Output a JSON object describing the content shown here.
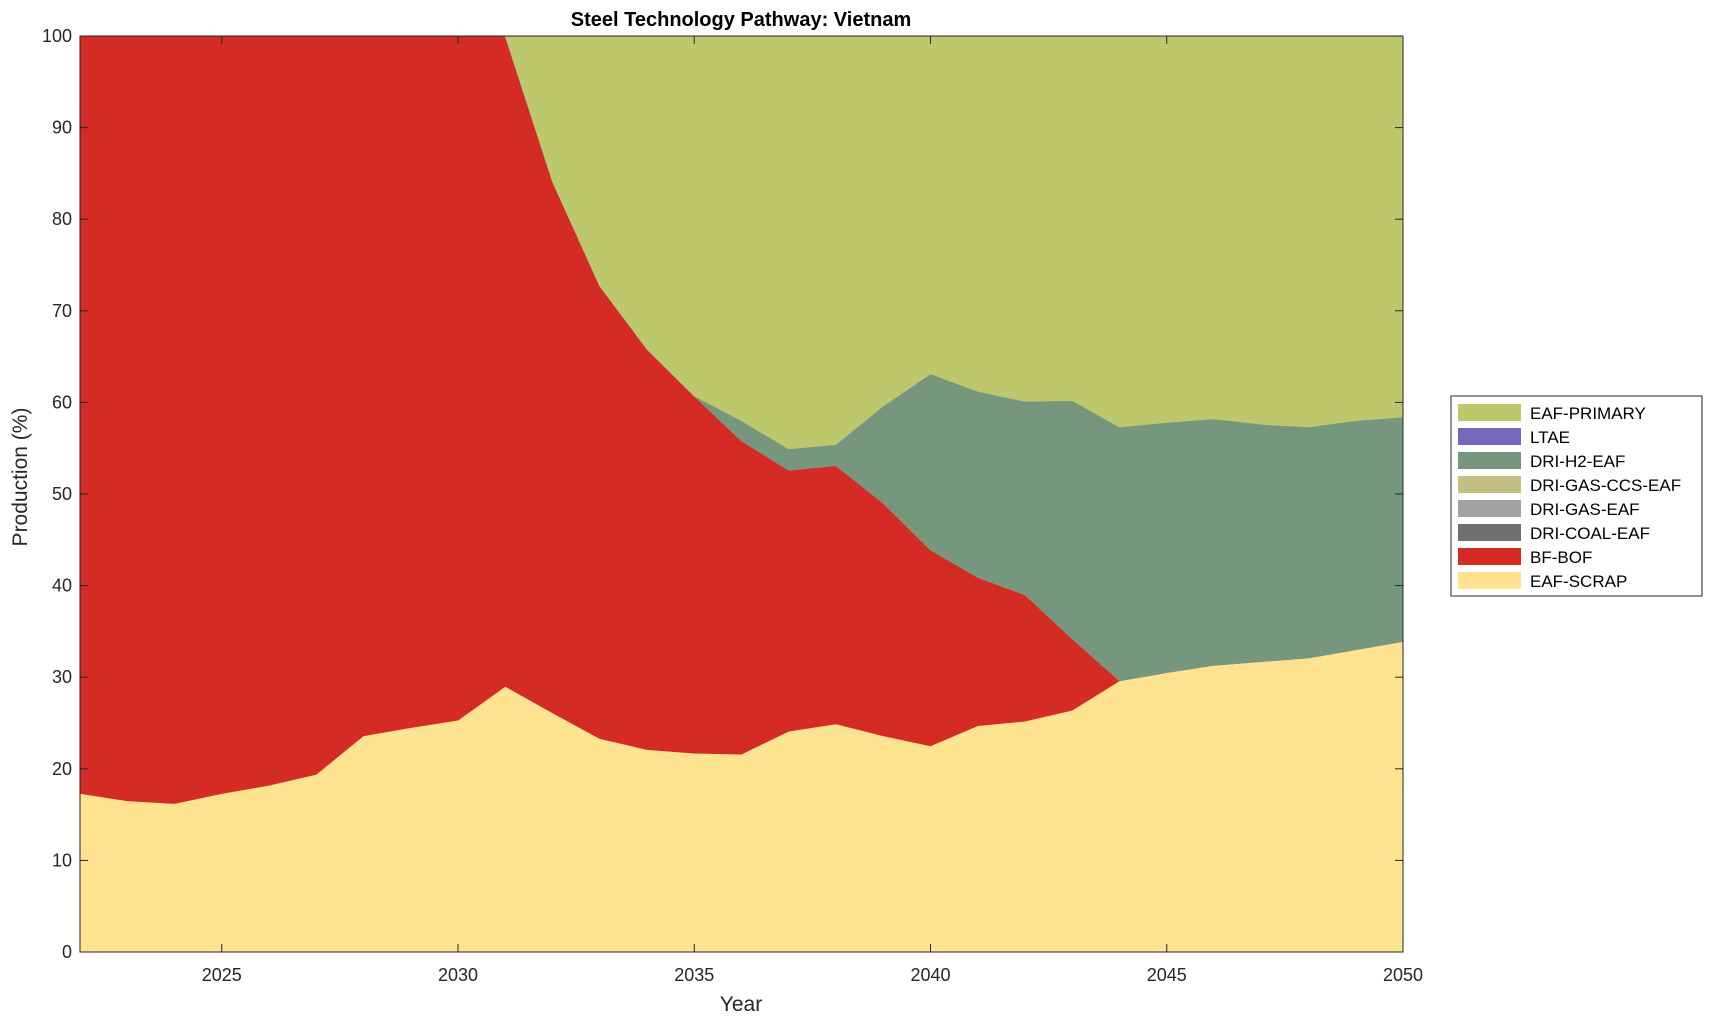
{
  "chart_data": {
    "type": "area",
    "title": "Steel Technology Pathway: Vietnam",
    "xlabel": "Year",
    "ylabel": "Production (%)",
    "xlim": [
      2022,
      2050
    ],
    "ylim": [
      0,
      100
    ],
    "xticks": [
      2025,
      2030,
      2035,
      2040,
      2045,
      2050
    ],
    "yticks": [
      0,
      10,
      20,
      30,
      40,
      50,
      60,
      70,
      80,
      90,
      100
    ],
    "grid": false,
    "legend_position": "right",
    "x": [
      2022,
      2023,
      2024,
      2025,
      2026,
      2027,
      2028,
      2029,
      2030,
      2031,
      2032,
      2033,
      2034,
      2035,
      2036,
      2037,
      2038,
      2039,
      2040,
      2041,
      2042,
      2043,
      2044,
      2045,
      2046,
      2047,
      2048,
      2049,
      2050
    ],
    "series": [
      {
        "name": "EAF-SCRAP",
        "color": "#fee391",
        "values": [
          17.3,
          16.5,
          16.2,
          17.3,
          18.2,
          19.4,
          23.6,
          24.5,
          25.3,
          29.0,
          26.1,
          23.3,
          22.1,
          21.7,
          21.6,
          24.1,
          24.9,
          23.6,
          22.5,
          24.7,
          25.2,
          26.4,
          29.6,
          30.5,
          31.3,
          31.7,
          32.1,
          33.0,
          33.9
        ]
      },
      {
        "name": "BF-BOF",
        "color": "#d42b25",
        "values": [
          82.7,
          83.5,
          83.8,
          82.7,
          81.8,
          80.6,
          76.4,
          75.5,
          74.7,
          71.0,
          58.0,
          49.4,
          43.7,
          39.0,
          34.2,
          28.5,
          28.2,
          25.4,
          21.4,
          16.2,
          13.8,
          7.8,
          0,
          0,
          0,
          0,
          0,
          0,
          0
        ]
      },
      {
        "name": "DRI-COAL-EAF",
        "color": "#707070",
        "values": [
          0,
          0,
          0,
          0,
          0,
          0,
          0,
          0,
          0,
          0,
          0,
          0,
          0,
          0,
          0,
          0,
          0,
          0,
          0,
          0,
          0,
          0,
          0,
          0,
          0,
          0,
          0,
          0,
          0
        ]
      },
      {
        "name": "DRI-GAS-EAF",
        "color": "#a2a2a2",
        "values": [
          0,
          0,
          0,
          0,
          0,
          0,
          0,
          0,
          0,
          0,
          0,
          0,
          0,
          0,
          0,
          0,
          0,
          0,
          0,
          0,
          0,
          0,
          0,
          0,
          0,
          0,
          0,
          0,
          0
        ]
      },
      {
        "name": "DRI-GAS-CCS-EAF",
        "color": "#c4bf83",
        "values": [
          0,
          0,
          0,
          0,
          0,
          0,
          0,
          0,
          0,
          0,
          0,
          0,
          0,
          0,
          0,
          0,
          0,
          0,
          0,
          0,
          0,
          0,
          0,
          0,
          0,
          0,
          0,
          0,
          0
        ]
      },
      {
        "name": "DRI-H2-EAF",
        "color": "#76977e",
        "values": [
          0,
          0,
          0,
          0,
          0,
          0,
          0,
          0,
          0,
          0,
          0,
          0,
          0,
          0,
          2.2,
          2.3,
          2.3,
          10.6,
          19.2,
          20.3,
          21.1,
          26.0,
          27.7,
          27.3,
          26.9,
          25.9,
          25.2,
          25.0,
          24.5
        ]
      },
      {
        "name": "LTAE",
        "color": "#7668bb",
        "values": [
          0,
          0,
          0,
          0,
          0,
          0,
          0,
          0,
          0,
          0,
          0,
          0,
          0,
          0,
          0,
          0,
          0,
          0,
          0,
          0,
          0,
          0,
          0,
          0,
          0,
          0,
          0,
          0,
          0
        ]
      },
      {
        "name": "EAF-PRIMARY",
        "color": "#bdc86c",
        "values": [
          0,
          0,
          0,
          0,
          0,
          0,
          0,
          0,
          0,
          0,
          15.9,
          27.3,
          34.2,
          39.3,
          42.0,
          45.1,
          44.6,
          40.4,
          36.9,
          38.8,
          39.9,
          39.8,
          42.7,
          42.2,
          41.8,
          42.4,
          42.7,
          42.0,
          41.6
        ]
      }
    ],
    "legend_order": [
      "EAF-PRIMARY",
      "LTAE",
      "DRI-H2-EAF",
      "DRI-GAS-CCS-EAF",
      "DRI-GAS-EAF",
      "DRI-COAL-EAF",
      "BF-BOF",
      "EAF-SCRAP"
    ]
  }
}
